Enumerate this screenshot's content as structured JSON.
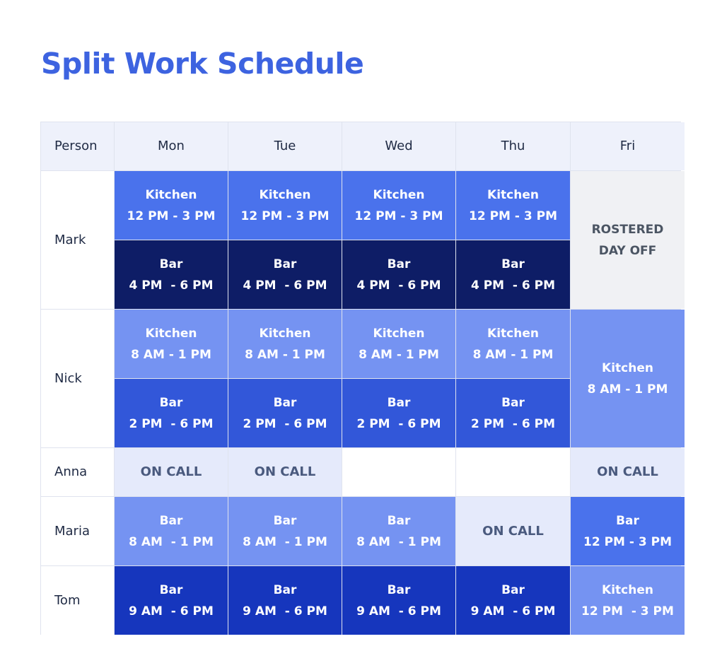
{
  "page": {
    "title": "Split Work Schedule"
  },
  "colors": {
    "title": "#3d63e0",
    "kitchen_shift": "#4a72ec",
    "bar_evening_shift": "#0e1d66",
    "morning_shift": "#7593f2",
    "bar_afternoon_shift": "#3257d9",
    "full_day_bar_shift": "#1636bd",
    "on_call": "#e5eafb",
    "day_off": "#f0f1f4"
  },
  "table": {
    "headers": [
      "Person",
      "Mon",
      "Tue",
      "Wed",
      "Thu",
      "Fri"
    ],
    "people": [
      "Mark",
      "Nick",
      "Anna",
      "Maria",
      "Tom"
    ],
    "cells": {
      "mark_kitchen": [
        "Kitchen",
        "12 PM - 3 PM"
      ],
      "mark_bar": [
        "Bar",
        "4 PM  - 6 PM"
      ],
      "mark_fri": [
        "ROSTERED",
        "DAY OFF"
      ],
      "nick_kitchen": [
        "Kitchen",
        "8 AM - 1 PM"
      ],
      "nick_bar": [
        "Bar",
        "2 PM  - 6 PM"
      ],
      "nick_fri": [
        "Kitchen",
        "8 AM - 1 PM"
      ],
      "on_call": "ON CALL",
      "maria_bar": [
        "Bar",
        "8 AM  - 1 PM"
      ],
      "maria_fri": [
        "Bar",
        "12 PM - 3 PM"
      ],
      "tom_bar": [
        "Bar",
        "9 AM  - 6 PM"
      ],
      "tom_fri": [
        "Kitchen",
        "12 PM  - 3 PM"
      ]
    }
  }
}
